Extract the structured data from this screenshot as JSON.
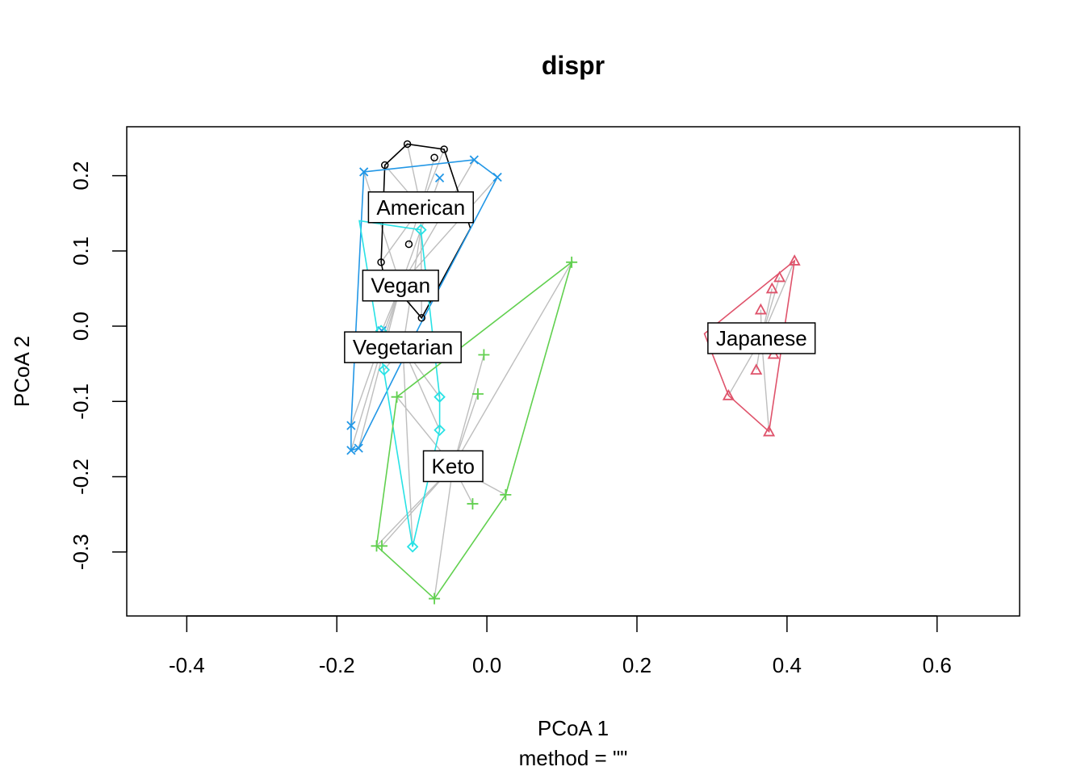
{
  "chart_data": {
    "type": "scatter",
    "title": "dispr",
    "xlabel": "PCoA 1",
    "ylabel": "PCoA 2",
    "sub": "method = \"\"",
    "xlim": [
      -0.48,
      0.71
    ],
    "ylim": [
      -0.385,
      0.265
    ],
    "xticks": [
      "-0.4",
      "-0.2",
      "0.0",
      "0.2",
      "0.4",
      "0.6"
    ],
    "yticks": [
      "-0.3",
      "-0.2",
      "-0.1",
      "0.0",
      "0.1",
      "0.2"
    ],
    "spider_color": "#bebebe",
    "groups": [
      {
        "name": "American",
        "color": "#000000",
        "symbol": "circle",
        "centroid": [
          -0.088,
          0.158
        ],
        "points": [
          [
            -0.106,
            0.242
          ],
          [
            -0.136,
            0.214
          ],
          [
            -0.07,
            0.224
          ],
          [
            -0.057,
            0.235
          ],
          [
            -0.104,
            0.109
          ],
          [
            -0.141,
            0.085
          ],
          [
            -0.087,
            0.011
          ]
        ],
        "hull": [
          [
            -0.106,
            0.242
          ],
          [
            -0.057,
            0.235
          ],
          [
            -0.022,
            0.13
          ],
          [
            -0.087,
            0.011
          ],
          [
            -0.138,
            0.07
          ],
          [
            -0.141,
            0.085
          ],
          [
            -0.136,
            0.214
          ]
        ]
      },
      {
        "name": "Vegan",
        "color": "#2297e6",
        "symbol": "x",
        "centroid": [
          -0.115,
          0.054
        ],
        "points": [
          [
            -0.164,
            0.205
          ],
          [
            -0.017,
            0.221
          ],
          [
            0.014,
            0.198
          ],
          [
            -0.063,
            0.197
          ],
          [
            -0.181,
            -0.132
          ],
          [
            -0.181,
            -0.165
          ],
          [
            -0.171,
            -0.162
          ],
          [
            -0.14,
            -0.006
          ]
        ],
        "hull": [
          [
            -0.164,
            0.205
          ],
          [
            -0.017,
            0.221
          ],
          [
            0.014,
            0.198
          ],
          [
            -0.09,
            0.0
          ],
          [
            -0.171,
            -0.162
          ],
          [
            -0.181,
            -0.165
          ],
          [
            -0.181,
            -0.132
          ]
        ]
      },
      {
        "name": "Vegetarian",
        "color": "#28e2e5",
        "symbol": "diamond",
        "centroid": [
          -0.112,
          -0.028
        ],
        "points": [
          [
            -0.088,
            0.128
          ],
          [
            -0.137,
            -0.058
          ],
          [
            -0.063,
            -0.094
          ],
          [
            -0.063,
            -0.138
          ],
          [
            -0.099,
            -0.293
          ],
          [
            -0.141,
            -0.006
          ]
        ],
        "hull": [
          [
            -0.088,
            0.128
          ],
          [
            -0.063,
            -0.094
          ],
          [
            -0.063,
            -0.138
          ],
          [
            -0.099,
            -0.293
          ],
          [
            -0.17,
            0.14
          ],
          [
            -0.088,
            0.128
          ]
        ]
      },
      {
        "name": "Keto",
        "color": "#61d04f",
        "symbol": "plus",
        "centroid": [
          -0.045,
          -0.186
        ],
        "points": [
          [
            0.113,
            0.085
          ],
          [
            -0.004,
            -0.038
          ],
          [
            -0.012,
            -0.09
          ],
          [
            -0.12,
            -0.094
          ],
          [
            -0.019,
            -0.236
          ],
          [
            0.025,
            -0.224
          ],
          [
            -0.147,
            -0.292
          ],
          [
            -0.14,
            -0.292
          ],
          [
            -0.07,
            -0.362
          ]
        ],
        "hull": [
          [
            0.113,
            0.085
          ],
          [
            0.025,
            -0.224
          ],
          [
            -0.07,
            -0.362
          ],
          [
            -0.147,
            -0.292
          ],
          [
            -0.12,
            -0.094
          ]
        ]
      },
      {
        "name": "Japanese",
        "color": "#df536b",
        "symbol": "triangle",
        "centroid": [
          0.366,
          -0.016
        ],
        "points": [
          [
            0.41,
            0.087
          ],
          [
            0.39,
            0.065
          ],
          [
            0.38,
            0.05
          ],
          [
            0.365,
            0.022
          ],
          [
            0.382,
            -0.037
          ],
          [
            0.359,
            -0.058
          ],
          [
            0.322,
            -0.092
          ],
          [
            0.376,
            -0.14
          ]
        ],
        "hull": [
          [
            0.41,
            0.087
          ],
          [
            0.376,
            -0.14
          ],
          [
            0.322,
            -0.092
          ],
          [
            0.29,
            -0.01
          ],
          [
            0.41,
            0.087
          ]
        ]
      }
    ]
  }
}
